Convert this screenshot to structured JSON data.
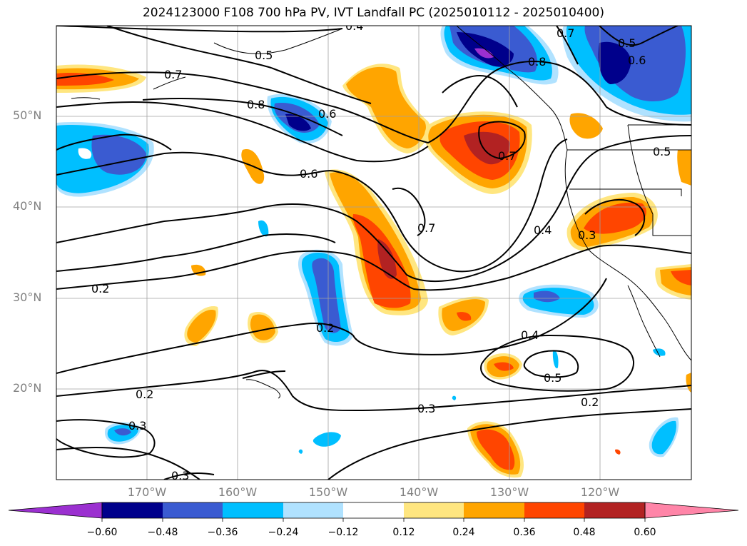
{
  "title": "2024123000 F108 700 hPa PV, IVT Landfall PC (2025010112 - 2025010400)",
  "axes": {
    "lat_ticks": [
      "50°N",
      "40°N",
      "30°N",
      "20°N"
    ],
    "lon_ticks": [
      "170°W",
      "160°W",
      "150°W",
      "140°W",
      "130°W",
      "120°W"
    ]
  },
  "contour_labels": [
    "0.4",
    "0.5",
    "0.5",
    "0.6",
    "0.7",
    "0.7",
    "0.8",
    "0.8",
    "0.6",
    "0.6",
    "0.5",
    "0.7",
    "0.7",
    "0.4",
    "0.3",
    "0.2",
    "0.2",
    "0.4",
    "0.5",
    "0.2",
    "0.3",
    "0.2",
    "0.3",
    "0.3"
  ],
  "colorbar": {
    "ticks": [
      "−0.60",
      "−0.48",
      "−0.36",
      "−0.24",
      "−0.12",
      "0.12",
      "0.24",
      "0.36",
      "0.48",
      "0.60"
    ],
    "colors": [
      "#9b30d0",
      "#00008b",
      "#3a5bd1",
      "#00bfff",
      "#b0e2ff",
      "#ffffff",
      "#ffe680",
      "#ffa500",
      "#ff4500",
      "#b22222",
      "#ff85a8"
    ]
  },
  "chart_data": {
    "type": "heatmap",
    "title": "2024123000 F108 700 hPa PV, IVT Landfall PC (2025010112 - 2025010400)",
    "region": {
      "lon": [
        -180,
        -110
      ],
      "lat": [
        10,
        60
      ]
    },
    "fill_levels": [
      -0.6,
      -0.48,
      -0.36,
      -0.24,
      -0.12,
      0.12,
      0.24,
      0.36,
      0.48,
      0.6
    ],
    "contour_levels": [
      0.2,
      0.3,
      0.4,
      0.5,
      0.6,
      0.7,
      0.8
    ]
  }
}
